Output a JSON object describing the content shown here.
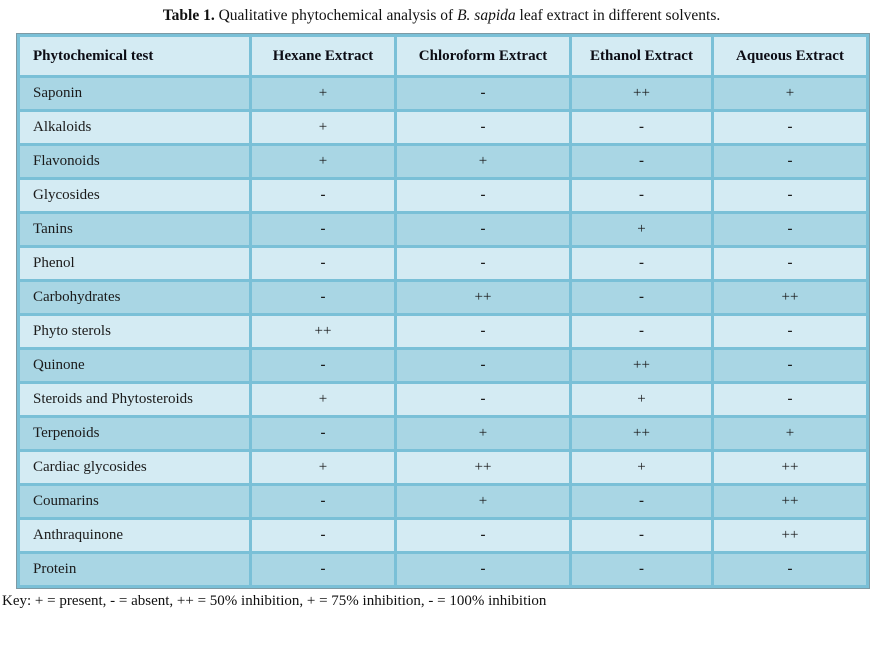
{
  "caption": {
    "label": "Table 1.",
    "text_before_species": " Qualitative phytochemical analysis of ",
    "species": "B. sapida",
    "text_after_species": " leaf extract in different solvents."
  },
  "table": {
    "columns": [
      "Phytochemical test",
      "Hexane Extract",
      "Chloroform Extract",
      "Ethanol Extract",
      "Aqueous Extract"
    ],
    "rows": [
      {
        "test": "Saponin",
        "values": [
          "+",
          "-",
          "++",
          "+"
        ]
      },
      {
        "test": "Alkaloids",
        "values": [
          "+",
          "-",
          "-",
          "-"
        ]
      },
      {
        "test": "Flavonoids",
        "values": [
          "+",
          "+",
          "-",
          "-"
        ]
      },
      {
        "test": "Glycosides",
        "values": [
          "-",
          "-",
          "-",
          "-"
        ]
      },
      {
        "test": "Tanins",
        "values": [
          "-",
          "-",
          "+",
          "-"
        ]
      },
      {
        "test": "Phenol",
        "values": [
          "-",
          "-",
          "-",
          "-"
        ]
      },
      {
        "test": "Carbohydrates",
        "values": [
          "-",
          "++",
          "-",
          "++"
        ]
      },
      {
        "test": "Phyto sterols",
        "values": [
          "++",
          "-",
          "-",
          "-"
        ]
      },
      {
        "test": "Quinone",
        "values": [
          "-",
          "-",
          "++",
          "-"
        ]
      },
      {
        "test": "Steroids and Phytosteroids",
        "values": [
          "+",
          "-",
          "+",
          "-"
        ]
      },
      {
        "test": "Terpenoids",
        "values": [
          "-",
          "+",
          "++",
          "+"
        ]
      },
      {
        "test": "Cardiac glycosides",
        "values": [
          "+",
          "++",
          "+",
          "++"
        ]
      },
      {
        "test": "Coumarins",
        "values": [
          "-",
          "+",
          "-",
          "++"
        ]
      },
      {
        "test": "Anthraquinone",
        "values": [
          "-",
          "-",
          "-",
          "++"
        ]
      },
      {
        "test": "Protein",
        "values": [
          "-",
          "-",
          "-",
          "-"
        ]
      }
    ]
  },
  "key": "Key: + = present, - = absent, ++ = 50% inhibition, + = 75% inhibition, - = 100% inhibition",
  "colors": {
    "border": "#7ac0d7",
    "row-dark": "#a9d6e4",
    "row-light": "#d4ebf3"
  }
}
